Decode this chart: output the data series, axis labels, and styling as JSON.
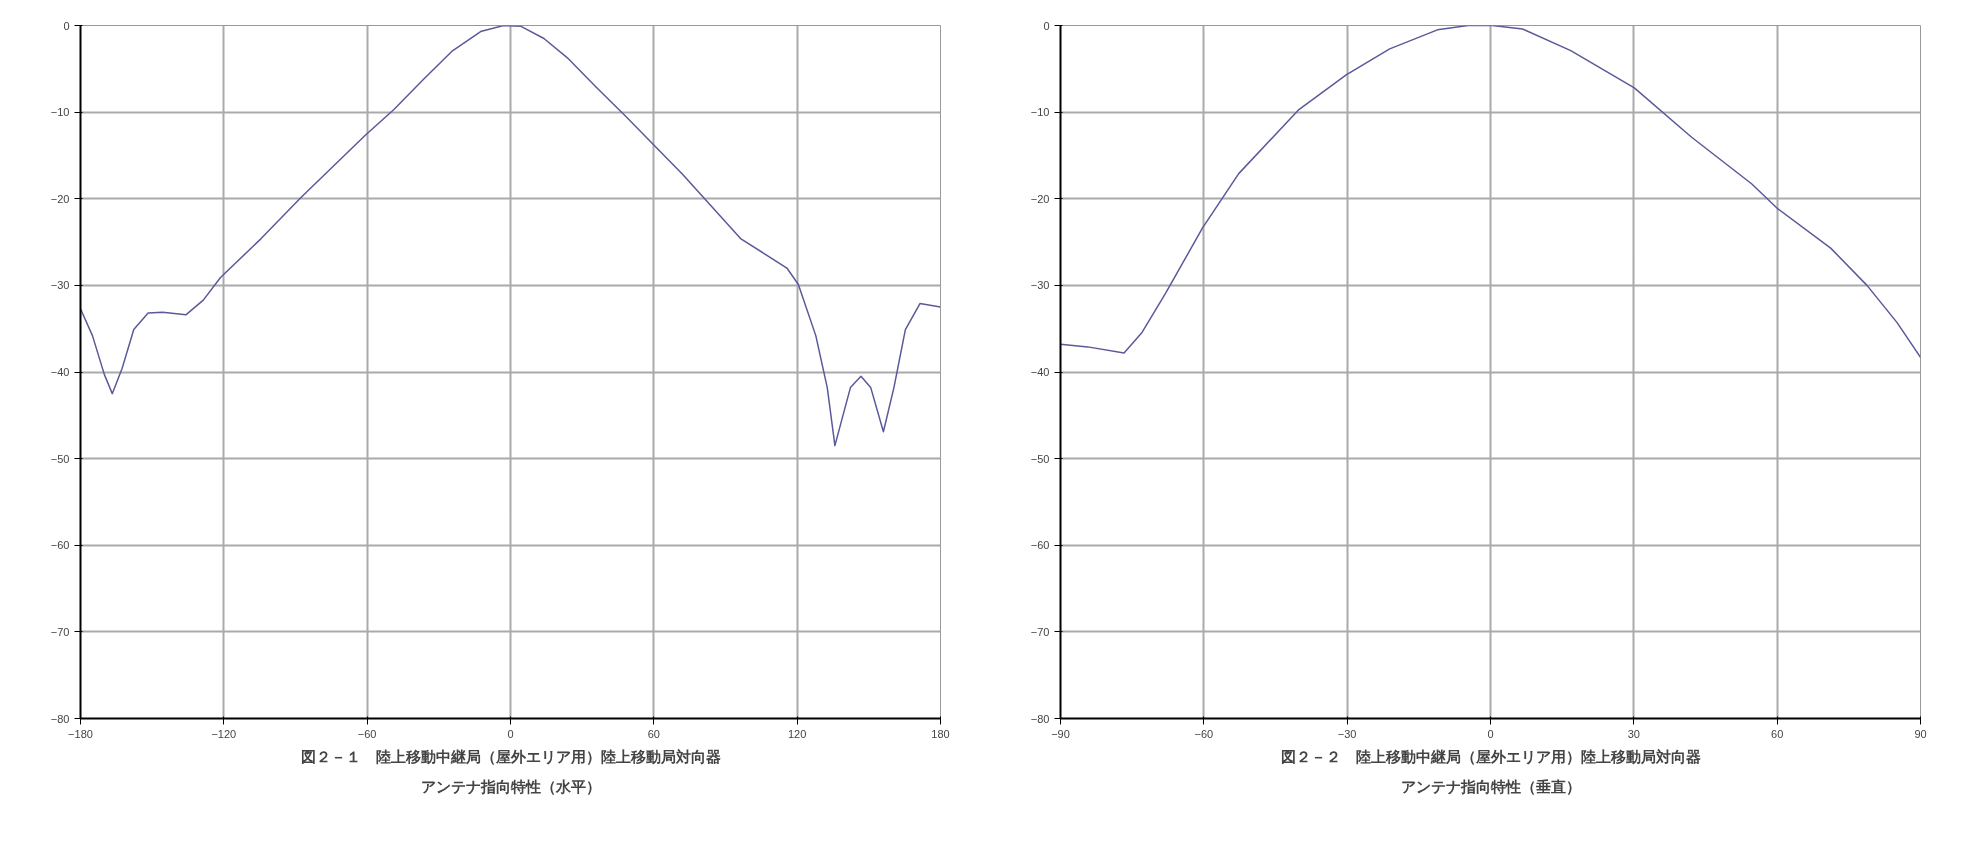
{
  "chart_data": [
    {
      "type": "line",
      "title": "図２－１　陸上移動中継局（屋外エリア用）陸上移動局対向器",
      "subtitle": "アンテナ指向特性（水平）",
      "color": "#5a5a9a",
      "grid": true,
      "x": [
        -180,
        -175,
        -170,
        -166.7,
        -162.6,
        -157.7,
        -151.7,
        -145.6,
        -135.9,
        -128.6,
        -121.4,
        -104.4,
        -87.5,
        -60.9,
        -48.8,
        -36.7,
        -24.6,
        -12.5,
        -2.9,
        4.4,
        14,
        23.7,
        35.8,
        47.9,
        60,
        72.1,
        84.2,
        96.3,
        106,
        115.7,
        120.5,
        127.8,
        132.6,
        135.8,
        138.7,
        142.3,
        146.7,
        150.8,
        156.1,
        160.5,
        165.3,
        171.4,
        180
      ],
      "values": [
        -32.7,
        -35.8,
        -40.3,
        -42.5,
        -39.6,
        -35.1,
        -33.2,
        -33.1,
        -33.4,
        -31.7,
        -29.1,
        -24.6,
        -19.8,
        -12.7,
        -9.7,
        -6.3,
        -3,
        -0.7,
        0,
        -0.1,
        -1.5,
        -3.7,
        -7.1,
        -10.4,
        -13.8,
        -17.2,
        -20.9,
        -24.6,
        -26.3,
        -28,
        -29.9,
        -35.8,
        -41.8,
        -48.5,
        -45.5,
        -41.8,
        -40.5,
        -41.8,
        -46.9,
        -41.8,
        -35.1,
        -32.1,
        -32.5
      ],
      "xlim": [
        -180,
        180
      ],
      "ylim": [
        -80,
        0
      ],
      "xticks": [
        -180,
        -120,
        -60,
        0,
        60,
        120,
        180
      ],
      "yticks": [
        -80,
        -70,
        -60,
        -50,
        -40,
        -30,
        -20,
        -10,
        0
      ]
    },
    {
      "type": "line",
      "title": "図２－２　陸上移動中継局（屋外エリア用）陸上移動局対向器",
      "subtitle": "アンテナ指向特性（垂直）",
      "color": "#5a5a9a",
      "grid": true,
      "x": [
        -90,
        -84.3,
        -76.7,
        -72.9,
        -67.9,
        -60.3,
        -52.7,
        -40.1,
        -30.2,
        -21.1,
        -11.1,
        -4.7,
        0.4,
        6.7,
        16.8,
        30.1,
        42.1,
        54.7,
        60,
        71.2,
        78.8,
        85.1,
        90
      ],
      "values": [
        -36.8,
        -37.1,
        -37.8,
        -35.4,
        -30.8,
        -23.4,
        -17.1,
        -9.7,
        -5.7,
        -2.7,
        -0.5,
        0,
        0,
        -0.4,
        -2.9,
        -7.2,
        -12.9,
        -18.3,
        -21.1,
        -25.7,
        -30,
        -34.3,
        -38.3
      ],
      "xlim": [
        -90,
        90
      ],
      "ylim": [
        -80,
        0
      ],
      "xticks": [
        -90,
        -60,
        -30,
        0,
        30,
        60,
        90
      ],
      "yticks": [
        -80,
        -70,
        -60,
        -50,
        -40,
        -30,
        -20,
        -10,
        0
      ]
    }
  ]
}
